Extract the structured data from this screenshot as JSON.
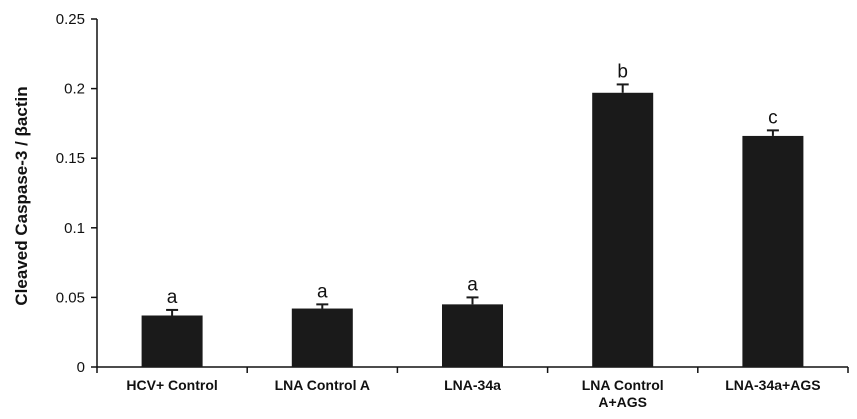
{
  "chart_data": {
    "type": "bar",
    "title": "",
    "xlabel": "",
    "ylabel": "Cleaved Caspase-3 / βactin",
    "ylim": [
      0,
      0.25
    ],
    "yticks": [
      "0",
      "0.05",
      "0.1",
      "0.15",
      "0.2",
      "0.25"
    ],
    "ytick_values": [
      0,
      0.05,
      0.1,
      0.15,
      0.2,
      0.25
    ],
    "categories": [
      [
        "HCV+ Control"
      ],
      [
        "LNA Control A"
      ],
      [
        "LNA-34a"
      ],
      [
        "LNA Control",
        "A+AGS"
      ],
      [
        "LNA-34a+AGS"
      ]
    ],
    "values": [
      0.037,
      0.042,
      0.045,
      0.197,
      0.166
    ],
    "errors": [
      0.004,
      0.003,
      0.005,
      0.006,
      0.004
    ],
    "significance_letters": [
      "a",
      "a",
      "a",
      "b",
      "c"
    ],
    "bar_color": "#1a1a1a",
    "grid": false,
    "legend": "none"
  }
}
